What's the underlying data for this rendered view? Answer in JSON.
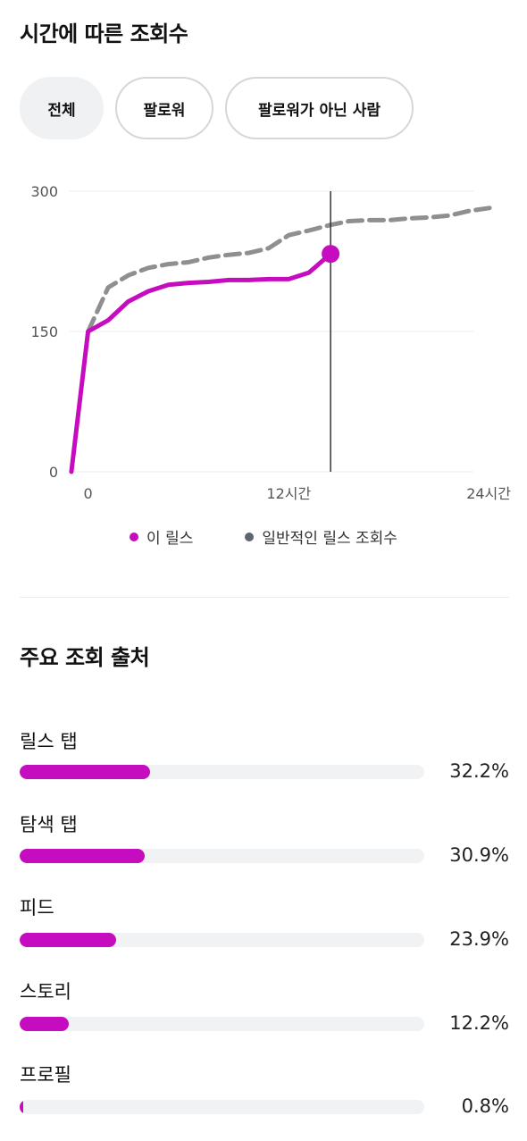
{
  "header": {
    "title": "시간에 따른 조회수"
  },
  "filters": [
    {
      "label": "전체",
      "selected": true
    },
    {
      "label": "팔로워",
      "selected": false
    },
    {
      "label": "팔로워가 아닌 사람",
      "selected": false
    }
  ],
  "legend": {
    "this_reel": "이 릴스",
    "typical": "일반적인 릴스 조회수"
  },
  "colors": {
    "accent": "#c60cbf",
    "typical": "#8f8f8f",
    "legend_typical_dot": "#5f6570"
  },
  "chart_data": {
    "type": "line",
    "x_unit": "hours",
    "xlim": [
      -1.1,
      24
    ],
    "ylim": [
      0,
      300
    ],
    "x_tick_labels": [
      "0",
      "12시간",
      "24시간"
    ],
    "x_ticks": [
      0,
      12,
      24
    ],
    "y_tick_labels": [
      "300",
      "150",
      "0"
    ],
    "y_ticks": [
      300,
      150,
      0
    ],
    "grid": true,
    "cursor_x": 14.5,
    "series": [
      {
        "name": "이 릴스",
        "style": "solid",
        "x": [
          -1.0,
          0,
          1.2,
          2.4,
          3.6,
          4.8,
          6.0,
          7.2,
          8.4,
          9.6,
          10.8,
          12.0,
          13.2,
          14.5
        ],
        "y": [
          0,
          150,
          162,
          182,
          193,
          200,
          202,
          203,
          205,
          205,
          206,
          206,
          213,
          233
        ]
      },
      {
        "name": "일반적인 릴스 조회수",
        "style": "dashed",
        "x": [
          0,
          1.2,
          2.4,
          3.6,
          4.8,
          6.0,
          7.2,
          8.4,
          9.6,
          10.8,
          12.0,
          13.2,
          14.5,
          15.6,
          16.8,
          18.0,
          19.2,
          20.4,
          21.6,
          22.8,
          24.0
        ],
        "y": [
          150,
          197,
          210,
          218,
          222,
          224,
          229,
          232,
          234,
          239,
          253,
          258,
          264,
          268,
          269,
          269,
          271,
          272,
          274,
          279,
          282
        ]
      }
    ]
  },
  "sources_title": "주요 조회 출처",
  "sources": [
    {
      "label": "릴스 탭",
      "value": "32.2%",
      "percent": 32.2
    },
    {
      "label": "탐색 탭",
      "value": "30.9%",
      "percent": 30.9
    },
    {
      "label": "피드",
      "value": "23.9%",
      "percent": 23.9
    },
    {
      "label": "스토리",
      "value": "12.2%",
      "percent": 12.2
    },
    {
      "label": "프로필",
      "value": "0.8%",
      "percent": 0.8
    }
  ]
}
